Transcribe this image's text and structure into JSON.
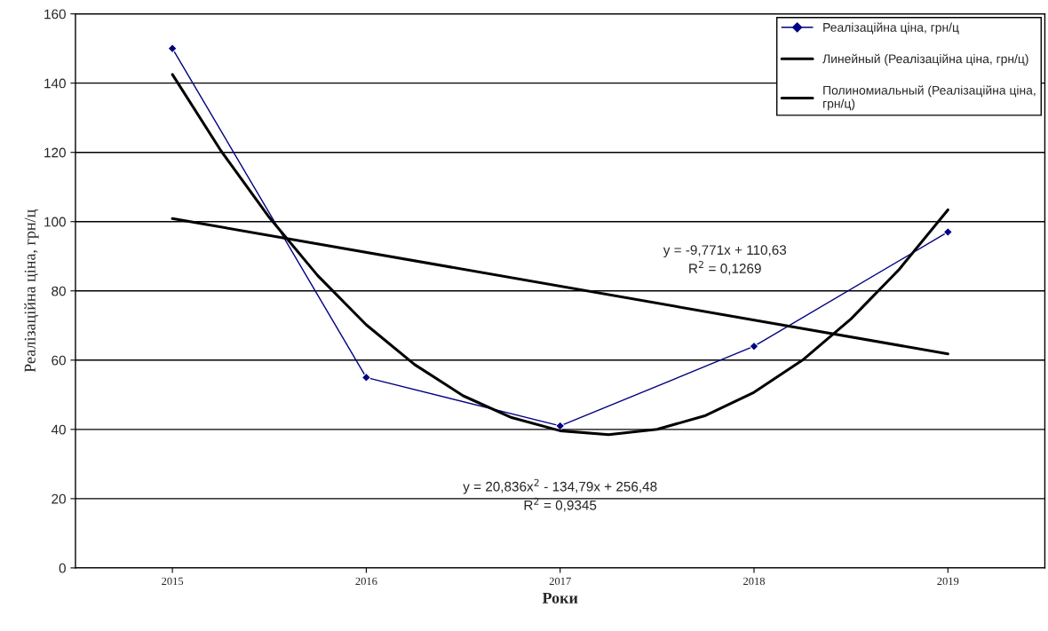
{
  "chart_data": {
    "type": "line",
    "xlabel": "Роки",
    "ylabel": "Реалізаційна ціна, грн/ц",
    "x": [
      2015,
      2016,
      2017,
      2018,
      2019
    ],
    "series": [
      {
        "name": "Реалізаційна ціна, грн/ц",
        "color": "#000080",
        "marker": "diamond",
        "values": [
          150,
          55,
          41,
          64,
          97
        ]
      },
      {
        "name": "Линейный (Реалізаційна ціна, грн/ц)",
        "color": "#000000",
        "marker": "none",
        "x": [
          2015,
          2019
        ],
        "values": [
          100.9,
          61.8
        ]
      },
      {
        "name": "Полиномиальный (Реалізаційна ціна, грн/ц)",
        "color": "#000000",
        "marker": "none",
        "x": [
          2015,
          2015.25,
          2015.5,
          2015.75,
          2016,
          2016.25,
          2016.5,
          2016.75,
          2017,
          2017.25,
          2017.5,
          2017.75,
          2018,
          2018.25,
          2018.5,
          2018.75,
          2019
        ],
        "values": [
          142.5,
          120.5,
          101.2,
          84.4,
          70.2,
          58.7,
          49.7,
          43.4,
          39.6,
          38.5,
          40.0,
          44.0,
          50.7,
          60.0,
          71.9,
          86.3,
          103.4
        ]
      }
    ],
    "xlim": [
      2014.5,
      2019.5
    ],
    "xticks": [
      2015,
      2016,
      2017,
      2018,
      2019
    ],
    "ylim": [
      0,
      160
    ],
    "yticks": [
      0,
      20,
      40,
      60,
      80,
      100,
      120,
      140,
      160
    ],
    "grid": "y",
    "legend": "top right",
    "annotations": [
      "y = -9,771x + 110,63\nR$^{2}$ = 0,1269",
      "y = 20,836x$^{2}$ - 134,79x + 256,48\nR$^{2}$ = 0,9345"
    ]
  }
}
